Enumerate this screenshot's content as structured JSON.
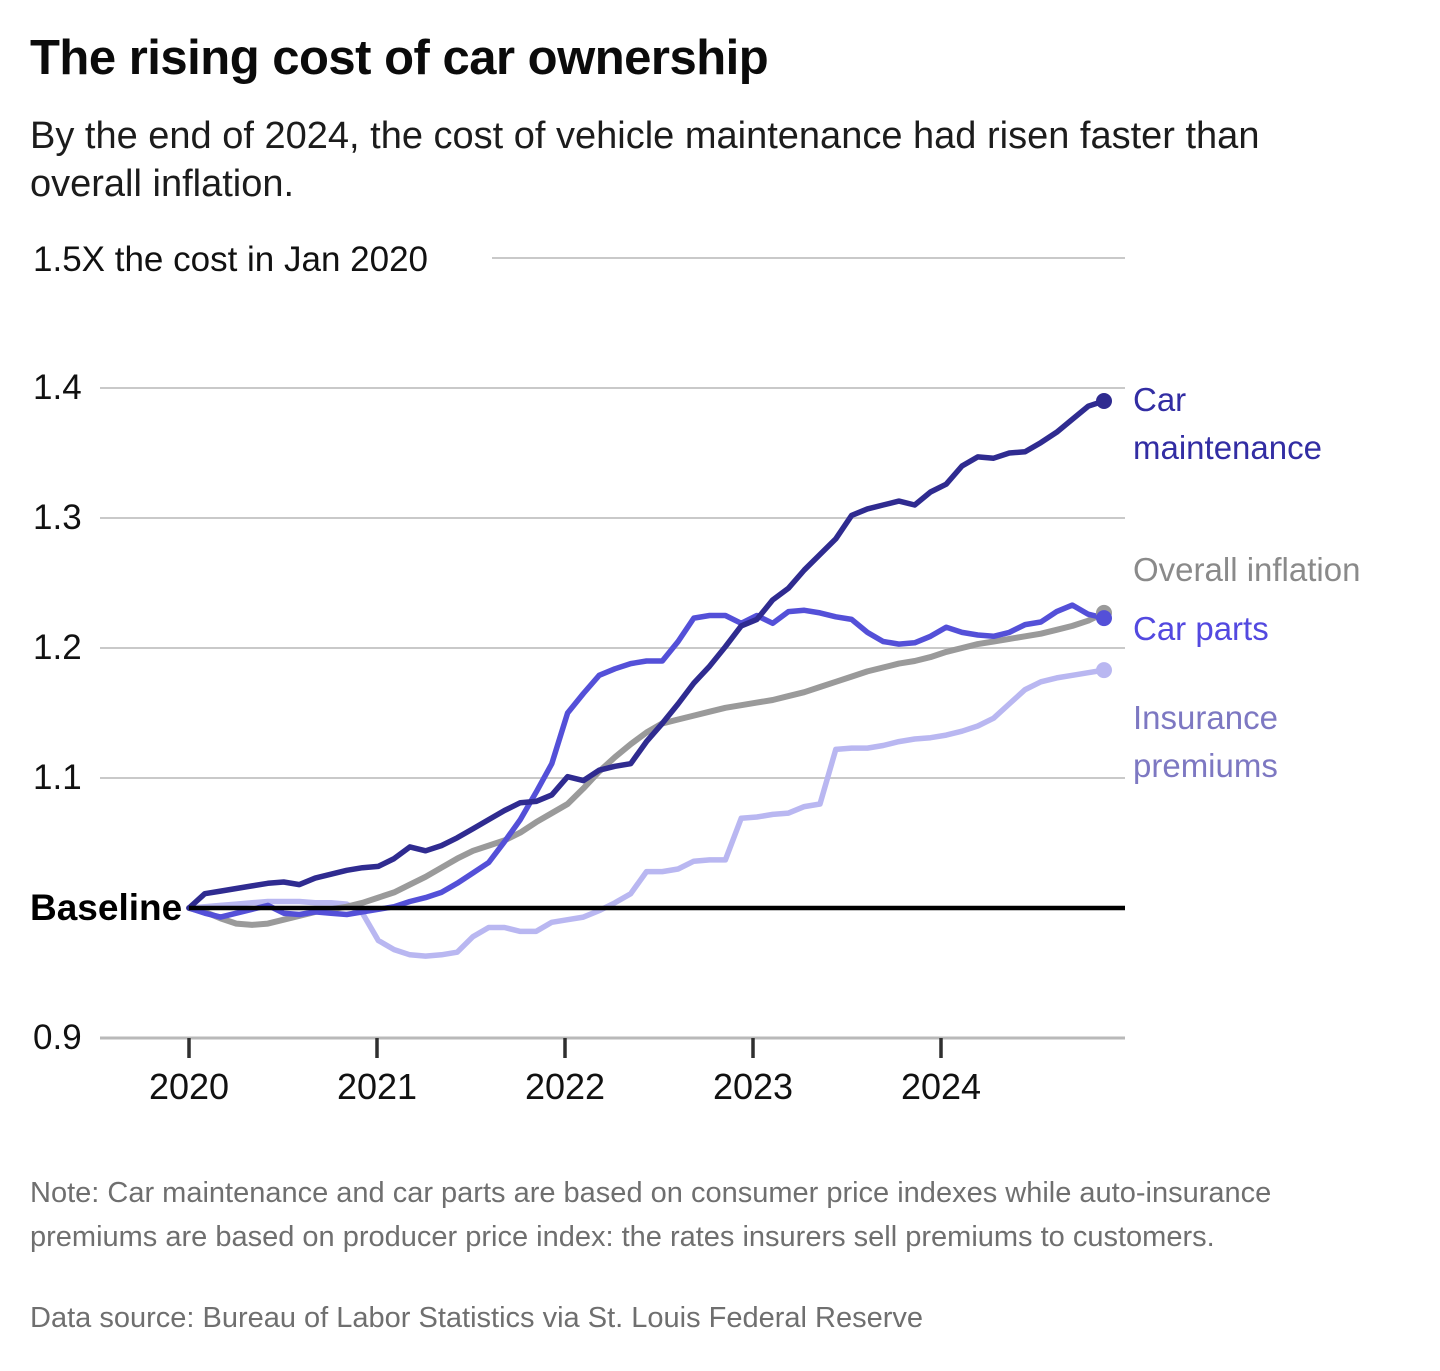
{
  "header": {
    "title": "The rising cost of car ownership",
    "subtitle": "By the end of 2024, the cost of vehicle maintenance had risen faster than overall inflation."
  },
  "chart_data": {
    "type": "line",
    "x_unit": "month",
    "x_range": [
      "Jan 2020",
      "Nov 2024"
    ],
    "grid": true,
    "legend_position": "right",
    "baseline": {
      "label": "Baseline",
      "value": 1.0
    },
    "y_axis": {
      "top_label": "1.5X the cost in Jan 2020",
      "ticks": [
        "1.4",
        "1.3",
        "1.2",
        "1.1",
        "0.9"
      ],
      "range": [
        0.9,
        1.5
      ]
    },
    "x_axis": {
      "ticks": [
        "2020",
        "2021",
        "2022",
        "2023",
        "2024"
      ]
    },
    "series": [
      {
        "key": "car_maintenance",
        "label": "Car maintenance",
        "color": "#2f2b90",
        "label_color": "#322da3",
        "end_value": 1.39,
        "values": [
          1.0,
          1.011,
          1.013,
          1.015,
          1.017,
          1.019,
          1.02,
          1.018,
          1.023,
          1.026,
          1.029,
          1.031,
          1.032,
          1.038,
          1.047,
          1.044,
          1.048,
          1.054,
          1.061,
          1.068,
          1.075,
          1.081,
          1.082,
          1.087,
          1.101,
          1.098,
          1.106,
          1.109,
          1.111,
          1.128,
          1.142,
          1.157,
          1.173,
          1.186,
          1.201,
          1.217,
          1.222,
          1.237,
          1.246,
          1.26,
          1.272,
          1.284,
          1.302,
          1.307,
          1.31,
          1.313,
          1.31,
          1.32,
          1.326,
          1.34,
          1.347,
          1.346,
          1.35,
          1.351,
          1.358,
          1.366,
          1.376,
          1.386,
          1.39
        ]
      },
      {
        "key": "overall_inflation",
        "label": "Overall inflation",
        "color": "#9a9a9a",
        "label_color": "#8a8a8a",
        "end_value": 1.227,
        "values": [
          1.0,
          0.997,
          0.992,
          0.988,
          0.987,
          0.988,
          0.991,
          0.994,
          0.997,
          0.999,
          1.001,
          1.004,
          1.008,
          1.012,
          1.018,
          1.024,
          1.031,
          1.038,
          1.044,
          1.048,
          1.052,
          1.058,
          1.066,
          1.073,
          1.08,
          1.092,
          1.105,
          1.116,
          1.126,
          1.135,
          1.142,
          1.145,
          1.148,
          1.151,
          1.154,
          1.156,
          1.158,
          1.16,
          1.163,
          1.166,
          1.17,
          1.174,
          1.178,
          1.182,
          1.185,
          1.188,
          1.19,
          1.193,
          1.197,
          1.2,
          1.203,
          1.205,
          1.207,
          1.209,
          1.211,
          1.214,
          1.217,
          1.221,
          1.227
        ]
      },
      {
        "key": "car_parts",
        "label": "Car parts",
        "color": "#5450d8",
        "label_color": "#5349e0",
        "end_value": 1.223,
        "values": [
          1.0,
          0.996,
          0.993,
          0.996,
          0.999,
          1.002,
          0.996,
          0.995,
          0.997,
          0.996,
          0.995,
          0.997,
          0.999,
          1.001,
          1.005,
          1.008,
          1.012,
          1.019,
          1.027,
          1.035,
          1.051,
          1.068,
          1.089,
          1.111,
          1.15,
          1.165,
          1.179,
          1.184,
          1.188,
          1.19,
          1.19,
          1.205,
          1.223,
          1.225,
          1.225,
          1.219,
          1.225,
          1.219,
          1.228,
          1.229,
          1.227,
          1.224,
          1.222,
          1.212,
          1.205,
          1.203,
          1.204,
          1.209,
          1.216,
          1.212,
          1.21,
          1.209,
          1.212,
          1.218,
          1.22,
          1.228,
          1.233,
          1.226,
          1.223
        ]
      },
      {
        "key": "insurance_premiums",
        "label": "Insurance premiums",
        "color": "#b9b7f1",
        "label_color": "#7d78c2",
        "end_value": 1.183,
        "values": [
          1.0,
          1.001,
          1.002,
          1.003,
          1.004,
          1.005,
          1.005,
          1.005,
          1.004,
          1.004,
          1.003,
          0.996,
          0.975,
          0.968,
          0.964,
          0.963,
          0.964,
          0.966,
          0.978,
          0.985,
          0.985,
          0.982,
          0.982,
          0.989,
          0.991,
          0.993,
          0.998,
          1.004,
          1.011,
          1.028,
          1.028,
          1.03,
          1.036,
          1.037,
          1.037,
          1.069,
          1.07,
          1.072,
          1.073,
          1.078,
          1.08,
          1.122,
          1.123,
          1.123,
          1.125,
          1.128,
          1.13,
          1.131,
          1.133,
          1.136,
          1.14,
          1.146,
          1.157,
          1.168,
          1.174,
          1.177,
          1.179,
          1.181,
          1.183
        ]
      }
    ]
  },
  "footer": {
    "note": "Note: Car maintenance and car parts are based on consumer price indexes while auto-insurance premiums are based on producer price index: the rates insurers sell premiums to customers.",
    "source": "Data source: Bureau of Labor Statistics via St. Louis Federal Reserve"
  }
}
